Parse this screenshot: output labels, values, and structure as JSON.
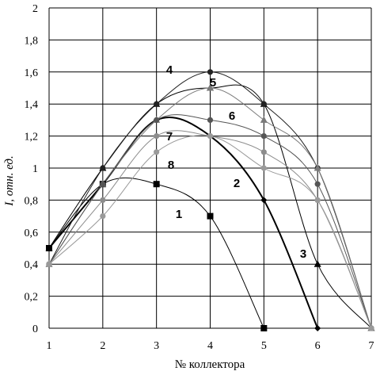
{
  "chart_data": {
    "type": "line",
    "xlabel": "№ коллектора",
    "ylabel": "I, отн. ед.",
    "x": [
      1,
      2,
      3,
      4,
      5,
      6,
      7
    ],
    "xlim": [
      1,
      7
    ],
    "ylim": [
      0,
      2
    ],
    "xticks": [
      "1",
      "2",
      "3",
      "4",
      "5",
      "6",
      "7"
    ],
    "yticks": [
      "0",
      "0,2",
      "0,4",
      "0,6",
      "0,8",
      "1",
      "1,2",
      "1,4",
      "1,6",
      "1,8",
      "2"
    ],
    "grid": true,
    "legend": "none",
    "series": [
      {
        "name": "1",
        "color": "#000000",
        "marker": "square",
        "width": 1,
        "values": [
          0.5,
          0.9,
          0.9,
          0.7,
          0,
          null,
          null
        ]
      },
      {
        "name": "2",
        "color": "#000000",
        "marker": "diamond",
        "width": 2,
        "values": [
          0.5,
          0.9,
          1.3,
          1.2,
          0.8,
          0,
          null
        ]
      },
      {
        "name": "3",
        "color": "#000000",
        "marker": "triangle",
        "width": 1,
        "values": [
          0.5,
          1.0,
          1.4,
          1.5,
          1.4,
          0.4,
          0
        ]
      },
      {
        "name": "4",
        "color": "#222222",
        "marker": "circle",
        "width": 1,
        "values": [
          0.4,
          1.0,
          1.4,
          1.6,
          1.4,
          1.0,
          0
        ]
      },
      {
        "name": "5",
        "color": "#7a7a7a",
        "marker": "triangle",
        "width": 1,
        "values": [
          0.4,
          0.9,
          1.3,
          1.5,
          1.3,
          1.0,
          0
        ]
      },
      {
        "name": "6",
        "color": "#555555",
        "marker": "circle",
        "width": 1,
        "values": [
          0.4,
          0.9,
          1.3,
          1.3,
          1.2,
          0.9,
          0
        ]
      },
      {
        "name": "7",
        "color": "#8c8c8c",
        "marker": "circle",
        "width": 1,
        "values": [
          0.4,
          0.8,
          1.2,
          1.2,
          1.1,
          0.8,
          0
        ]
      },
      {
        "name": "8",
        "color": "#9a9a9a",
        "marker": "circle",
        "width": 1,
        "values": [
          0.4,
          0.7,
          1.1,
          1.2,
          1.0,
          0.8,
          0
        ]
      }
    ]
  }
}
